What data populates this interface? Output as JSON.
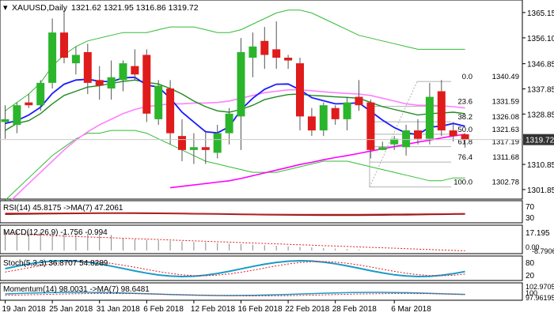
{
  "header": {
    "symbol_line": "XAUUSD,Daily",
    "ohlc": "1321.62 1321.95 1316.86 1319.72"
  },
  "colors": {
    "bull": "#2bb52b",
    "bear": "#e01b1b",
    "blue_ma": "#1a1aff",
    "green_ma": "#1e8c1e",
    "pink_ma": "#ff80ff",
    "magenta_ma": "#ff00ff",
    "bands": "#33bb33",
    "fib": "#b0b0b0",
    "price_tag": "#333333",
    "grid": "#c8c8c8"
  },
  "price_axis": {
    "ticks": [
      "1365.15",
      "1356.10",
      "1346.85",
      "1337.85",
      "1328.85",
      "1319.72",
      "1310.85",
      "1301.85"
    ],
    "tick_values": [
      1365.15,
      1356.1,
      1346.85,
      1337.85,
      1328.85,
      1319.72,
      1310.85,
      1301.85
    ],
    "current": "1319.72",
    "current_value": 1319.72,
    "ylim": [
      1299.0,
      1368.5
    ]
  },
  "date_axis": [
    "19 Jan 2018",
    "25 Jan 2018",
    "31 Jan 2018",
    "6 Feb 2018",
    "12 Feb 2018",
    "16 Feb 2018",
    "22 Feb 2018",
    "28 Feb 2018",
    "6 Mar 2018"
  ],
  "fib_levels": [
    {
      "label": "0.0",
      "value": "1340.49",
      "v": 1340.49
    },
    {
      "label": "23.6",
      "value": "1331.59",
      "v": 1331.59
    },
    {
      "label": "38.2",
      "value": "1326.08",
      "v": 1326.08
    },
    {
      "label": "50.0",
      "value": "1321.63",
      "v": 1321.63
    },
    {
      "label": "61.8",
      "value": "1317.19",
      "v": 1317.19
    },
    {
      "label": "76.4",
      "value": "1311.68",
      "v": 1311.68
    },
    {
      "label": "100.0",
      "value": "1302.78",
      "v": 1302.78
    }
  ],
  "chart_data": {
    "type": "candlestick",
    "series": [
      {
        "o": 1326,
        "h": 1332,
        "l": 1320,
        "c": 1327
      },
      {
        "o": 1325,
        "h": 1333,
        "l": 1322,
        "c": 1332
      },
      {
        "o": 1333,
        "h": 1336,
        "l": 1331,
        "c": 1332
      },
      {
        "o": 1332,
        "h": 1341,
        "l": 1330,
        "c": 1340
      },
      {
        "o": 1340,
        "h": 1363,
        "l": 1338,
        "c": 1358
      },
      {
        "o": 1358,
        "h": 1366,
        "l": 1347,
        "c": 1349
      },
      {
        "o": 1347,
        "h": 1353,
        "l": 1343,
        "c": 1350
      },
      {
        "o": 1351,
        "h": 1354,
        "l": 1336,
        "c": 1340
      },
      {
        "o": 1341,
        "h": 1346,
        "l": 1334,
        "c": 1339
      },
      {
        "o": 1338,
        "h": 1348,
        "l": 1334,
        "c": 1342
      },
      {
        "o": 1341,
        "h": 1348,
        "l": 1337,
        "c": 1347
      },
      {
        "o": 1346,
        "h": 1352,
        "l": 1341,
        "c": 1343
      },
      {
        "o": 1350,
        "h": 1352,
        "l": 1326,
        "c": 1329
      },
      {
        "o": 1327,
        "h": 1341,
        "l": 1325,
        "c": 1339
      },
      {
        "o": 1338,
        "h": 1341,
        "l": 1318,
        "c": 1322
      },
      {
        "o": 1321,
        "h": 1327,
        "l": 1312,
        "c": 1316
      },
      {
        "o": 1316,
        "h": 1322,
        "l": 1311,
        "c": 1317
      },
      {
        "o": 1317,
        "h": 1323,
        "l": 1311,
        "c": 1316
      },
      {
        "o": 1315,
        "h": 1325,
        "l": 1313,
        "c": 1322
      },
      {
        "o": 1322,
        "h": 1331,
        "l": 1318,
        "c": 1329
      },
      {
        "o": 1328,
        "h": 1356,
        "l": 1316,
        "c": 1351
      },
      {
        "o": 1349,
        "h": 1358,
        "l": 1342,
        "c": 1353
      },
      {
        "o": 1355,
        "h": 1360,
        "l": 1345,
        "c": 1350
      },
      {
        "o": 1352,
        "h": 1362,
        "l": 1345,
        "c": 1349
      },
      {
        "o": 1349,
        "h": 1350,
        "l": 1345,
        "c": 1348
      },
      {
        "o": 1347,
        "h": 1349,
        "l": 1323,
        "c": 1328
      },
      {
        "o": 1328,
        "h": 1331,
        "l": 1321,
        "c": 1323
      },
      {
        "o": 1323,
        "h": 1333,
        "l": 1321,
        "c": 1332
      },
      {
        "o": 1331,
        "h": 1332,
        "l": 1325,
        "c": 1327
      },
      {
        "o": 1327,
        "h": 1335,
        "l": 1323,
        "c": 1333
      },
      {
        "o": 1335,
        "h": 1341,
        "l": 1330,
        "c": 1332
      },
      {
        "o": 1333,
        "h": 1334,
        "l": 1313,
        "c": 1316
      },
      {
        "o": 1316,
        "h": 1319,
        "l": 1316,
        "c": 1317
      },
      {
        "o": 1318,
        "h": 1321,
        "l": 1316,
        "c": 1320
      },
      {
        "o": 1317,
        "h": 1325,
        "l": 1314,
        "c": 1323
      },
      {
        "o": 1323,
        "h": 1327,
        "l": 1318,
        "c": 1320
      },
      {
        "o": 1320,
        "h": 1340,
        "l": 1318,
        "c": 1335
      },
      {
        "o": 1337,
        "h": 1341,
        "l": 1321,
        "c": 1323
      },
      {
        "o": 1323,
        "h": 1326,
        "l": 1319,
        "c": 1321
      },
      {
        "o": 1321.62,
        "h": 1321.95,
        "l": 1316.86,
        "c": 1319.72
      }
    ],
    "overlays": {
      "blue": [
        1325.5,
        1326.5,
        1328.5,
        1331.3,
        1336.2,
        1339.5,
        1341.0,
        1341.3,
        1340.6,
        1340.4,
        1341.8,
        1342.0,
        1339.2,
        1338.5,
        1334.5,
        1329.5,
        1326.0,
        1322.5,
        1322.1,
        1324.3,
        1330.4,
        1334.5,
        1337.7,
        1339.5,
        1339.6,
        1337.5,
        1334.7,
        1333.6,
        1332.5,
        1332.6,
        1332.9,
        1329.8,
        1326.7,
        1324.0,
        1322.1,
        1321.5,
        1324.2,
        1324.5,
        1325.5,
        1324.5
      ],
      "green": [
        1323.0,
        1325.5,
        1326.5,
        1329.0,
        1332.5,
        1335.5,
        1337.0,
        1338.5,
        1339.0,
        1339.8,
        1340.5,
        1341.0,
        1340.2,
        1339.6,
        1338.0,
        1336.0,
        1333.5,
        1331.5,
        1330.0,
        1329.5,
        1330.5,
        1332.0,
        1334.0,
        1335.0,
        1335.8,
        1336.0,
        1335.5,
        1335.3,
        1335.0,
        1334.8,
        1334.5,
        1333.0,
        1331.5,
        1330.5,
        1329.5,
        1328.5,
        1329.0,
        1329.2,
        1329.5,
        1329.0
      ],
      "pink": [
        1296.0,
        1300.0,
        1304.0,
        1308.0,
        1312.0,
        1316.0,
        1319.5,
        1322.5,
        1325.0,
        1327.0,
        1329.0,
        1330.5,
        1331.5,
        1332.0,
        1332.5,
        1332.5,
        1332.8,
        1332.8,
        1333.0,
        1333.5,
        1334.5,
        1335.5,
        1336.5,
        1337.0,
        1337.5,
        1337.5,
        1337.2,
        1336.8,
        1336.5,
        1336.2,
        1336.0,
        1335.5,
        1334.5,
        1333.5,
        1332.5,
        1332.0,
        1332.0,
        1331.8,
        1331.5,
        1331.0
      ],
      "magenta": [
        null,
        null,
        null,
        null,
        null,
        null,
        null,
        null,
        null,
        null,
        null,
        null,
        null,
        null,
        1302.5,
        1303.0,
        1303.5,
        1304.0,
        1304.5,
        1305.0,
        1305.8,
        1306.8,
        1307.8,
        1308.8,
        1309.8,
        1310.8,
        1311.6,
        1312.5,
        1313.3,
        1314.0,
        1314.8,
        1315.6,
        1316.4,
        1317.2,
        1318.0,
        1318.8,
        1319.5,
        1320.3,
        1321.0,
        1321.6
      ],
      "band_upper": [
        1330,
        1333,
        1336,
        1340,
        1346,
        1350,
        1353,
        1355,
        1356,
        1357,
        1358,
        1358,
        1358,
        1359,
        1360,
        1360,
        1360,
        1359,
        1358,
        1358,
        1359,
        1361,
        1363,
        1365,
        1366,
        1366,
        1365,
        1363,
        1361,
        1359,
        1357,
        1356,
        1355,
        1354,
        1353,
        1352,
        1352,
        1352,
        1352,
        1352
      ],
      "band_lower": [
        1298,
        1302,
        1306,
        1310,
        1314,
        1317,
        1320,
        1322,
        1322,
        1323,
        1323,
        1323,
        1322,
        1320,
        1318,
        1316,
        1314,
        1312,
        1311,
        1310,
        1309,
        1308,
        1308,
        1308,
        1309,
        1310,
        1311,
        1312,
        1312,
        1312,
        1311,
        1310,
        1309,
        1308,
        1307,
        1306,
        1305,
        1305,
        1306,
        1306
      ]
    }
  },
  "panels": {
    "rsi": {
      "label": "RSI(14) 45.8175 ->MA(7) 47.2061",
      "ticks": [
        "70",
        "30"
      ]
    },
    "macd": {
      "label": "MACD(12,26,9) -1.756 -0.994",
      "ticks": [
        "17.195",
        "0.00",
        "-8.7906"
      ]
    },
    "stoch": {
      "label": "Stoch(5,3,3) 36.8707 54.8289",
      "ticks": [
        "80",
        "20"
      ]
    },
    "momentum": {
      "label": "Momentum(14) 98.0031 ->MA(7) 98.6481",
      "ticks": [
        "102.9705",
        "100",
        "97.96195"
      ]
    }
  }
}
